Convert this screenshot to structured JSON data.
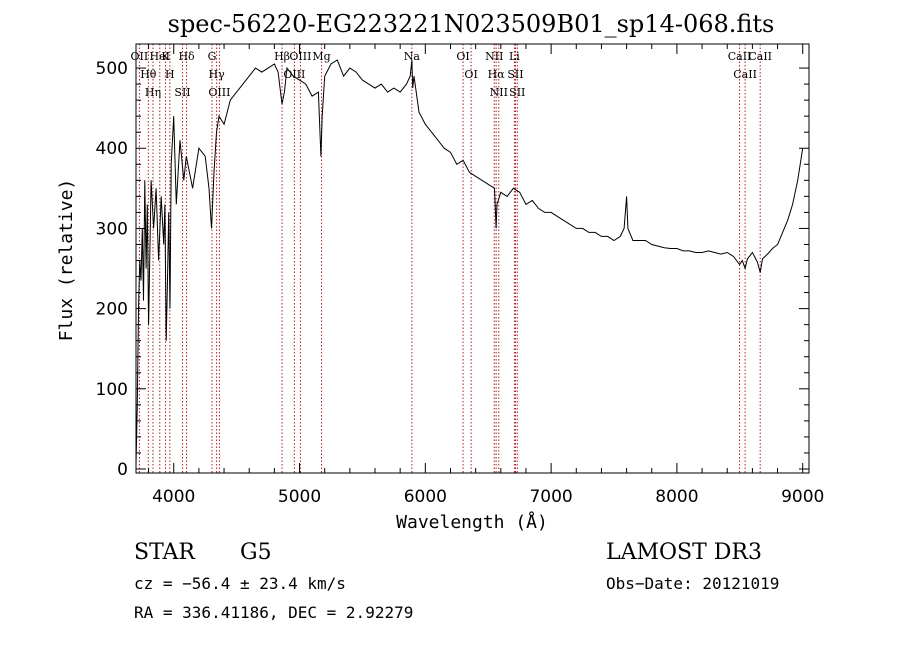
{
  "chart_data": {
    "type": "line",
    "title": "spec-56220-EG223221N023509B01_sp14-068.fits",
    "xlabel": "Wavelength (Å)",
    "ylabel": "Flux (relative)",
    "xlim": [
      3700,
      9050
    ],
    "ylim": [
      -5,
      530
    ],
    "xticks": [
      4000,
      5000,
      6000,
      7000,
      8000,
      9000
    ],
    "yticks": [
      0,
      100,
      200,
      300,
      400,
      500
    ],
    "series": [
      {
        "name": "spectrum",
        "color": "#000000",
        "x": [
          3700,
          3710,
          3720,
          3730,
          3740,
          3750,
          3760,
          3770,
          3780,
          3790,
          3800,
          3820,
          3840,
          3860,
          3880,
          3900,
          3920,
          3930,
          3940,
          3950,
          3960,
          3970,
          3980,
          4000,
          4020,
          4050,
          4080,
          4100,
          4150,
          4200,
          4250,
          4280,
          4300,
          4320,
          4340,
          4360,
          4400,
          4450,
          4500,
          4550,
          4600,
          4650,
          4700,
          4750,
          4800,
          4830,
          4861,
          4880,
          4900,
          4950,
          5000,
          5050,
          5100,
          5150,
          5170,
          5180,
          5200,
          5250,
          5300,
          5350,
          5400,
          5450,
          5500,
          5550,
          5600,
          5650,
          5700,
          5750,
          5800,
          5850,
          5880,
          5893,
          5900,
          5910,
          5950,
          6000,
          6050,
          6100,
          6150,
          6200,
          6250,
          6300,
          6350,
          6400,
          6450,
          6500,
          6550,
          6563,
          6570,
          6600,
          6650,
          6700,
          6750,
          6800,
          6850,
          6900,
          6950,
          7000,
          7050,
          7100,
          7150,
          7200,
          7250,
          7300,
          7350,
          7400,
          7450,
          7500,
          7550,
          7580,
          7600,
          7610,
          7650,
          7700,
          7750,
          7800,
          7850,
          7900,
          7950,
          8000,
          8050,
          8100,
          8150,
          8200,
          8250,
          8300,
          8350,
          8400,
          8450,
          8498,
          8520,
          8542,
          8560,
          8600,
          8640,
          8662,
          8680,
          8720,
          8760,
          8800,
          8840,
          8880,
          8920,
          8960,
          8980,
          9000
        ],
        "y": [
          5,
          80,
          200,
          260,
          235,
          300,
          210,
          360,
          250,
          330,
          180,
          360,
          300,
          350,
          260,
          340,
          280,
          330,
          160,
          230,
          320,
          200,
          380,
          440,
          330,
          410,
          360,
          390,
          350,
          400,
          390,
          350,
          300,
          370,
          420,
          440,
          430,
          460,
          470,
          480,
          490,
          500,
          495,
          500,
          505,
          495,
          455,
          470,
          500,
          490,
          485,
          480,
          465,
          470,
          390,
          440,
          490,
          505,
          510,
          490,
          500,
          495,
          485,
          480,
          475,
          480,
          470,
          475,
          470,
          480,
          490,
          510,
          475,
          490,
          445,
          430,
          420,
          410,
          400,
          395,
          380,
          385,
          370,
          365,
          360,
          355,
          350,
          300,
          330,
          345,
          340,
          350,
          345,
          330,
          335,
          325,
          320,
          320,
          315,
          310,
          305,
          300,
          300,
          295,
          295,
          290,
          290,
          285,
          290,
          300,
          340,
          300,
          285,
          285,
          285,
          280,
          278,
          276,
          275,
          275,
          272,
          272,
          270,
          270,
          272,
          270,
          268,
          270,
          265,
          255,
          260,
          250,
          262,
          270,
          258,
          245,
          262,
          268,
          275,
          280,
          295,
          310,
          330,
          360,
          380,
          400
        ]
      }
    ],
    "lines": [
      {
        "wave": 3727,
        "label": "OII"
      },
      {
        "wave": 3798,
        "label": "Hθ"
      },
      {
        "wave": 3835,
        "label": "Hη"
      },
      {
        "wave": 3889,
        "label": "HeI"
      },
      {
        "wave": 3934,
        "label": "K"
      },
      {
        "wave": 3969,
        "label": "H"
      },
      {
        "wave": 4070,
        "label": "SII"
      },
      {
        "wave": 4102,
        "label": "Hδ"
      },
      {
        "wave": 4304,
        "label": "G"
      },
      {
        "wave": 4341,
        "label": "Hγ"
      },
      {
        "wave": 4363,
        "label": "OIII"
      },
      {
        "wave": 4861,
        "label": "Hβ"
      },
      {
        "wave": 4959,
        "label": "OIII"
      },
      {
        "wave": 5007,
        "label": "OIII"
      },
      {
        "wave": 5175,
        "label": "Mg"
      },
      {
        "wave": 5893,
        "label": "Na"
      },
      {
        "wave": 6300,
        "label": "OI"
      },
      {
        "wave": 6364,
        "label": "OI"
      },
      {
        "wave": 6548,
        "label": "NII"
      },
      {
        "wave": 6563,
        "label": "Hα"
      },
      {
        "wave": 6584,
        "label": "NII"
      },
      {
        "wave": 6708,
        "label": "Li"
      },
      {
        "wave": 6717,
        "label": "SII"
      },
      {
        "wave": 6731,
        "label": "SII"
      },
      {
        "wave": 8498,
        "label": "CaII"
      },
      {
        "wave": 8542,
        "label": "CaII"
      },
      {
        "wave": 8662,
        "label": "CaII"
      }
    ],
    "line_color": "#b22222"
  },
  "info": {
    "class": "STAR",
    "subclass": "G5",
    "survey": "LAMOST DR3",
    "cz": "cz = −56.4 ± 23.4 km/s",
    "obs_date": "Obs−Date: 20121019",
    "radec": "RA = 336.41186, DEC =    2.92279"
  }
}
